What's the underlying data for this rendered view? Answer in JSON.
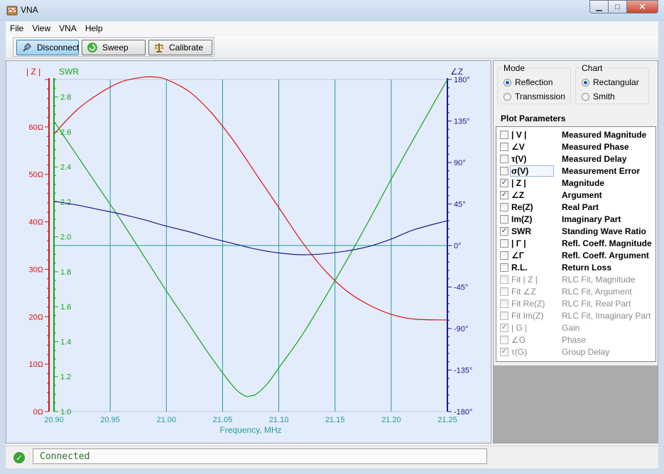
{
  "window": {
    "title": "VNA"
  },
  "menu": [
    "File",
    "View",
    "VNA",
    "Help"
  ],
  "toolbar": {
    "disconnect": "Disconnect",
    "sweep": "Sweep",
    "calibrate": "Calibrate"
  },
  "mode": {
    "title": "Mode",
    "options": [
      "Reflection",
      "Transmission"
    ],
    "selected": "Reflection"
  },
  "chart_type": {
    "title": "Chart",
    "options": [
      "Rectangular",
      "Smith"
    ],
    "selected": "Rectangular"
  },
  "plot_parameters": {
    "title": "Plot Parameters",
    "items": [
      {
        "symbol": "| V |",
        "label": "Measured Magnitude",
        "checked": false,
        "enabled": true
      },
      {
        "symbol": "∠V",
        "label": "Measured Phase",
        "checked": false,
        "enabled": true
      },
      {
        "symbol": "τ(V)",
        "label": "Measured Delay",
        "checked": false,
        "enabled": true
      },
      {
        "symbol": "σ(V)",
        "label": "Measurement Error",
        "checked": false,
        "enabled": true
      },
      {
        "symbol": "| Z |",
        "label": "Magnitude",
        "checked": true,
        "enabled": true
      },
      {
        "symbol": "∠Z",
        "label": "Argument",
        "checked": true,
        "enabled": true
      },
      {
        "symbol": "Re(Z)",
        "label": "Real Part",
        "checked": false,
        "enabled": true
      },
      {
        "symbol": "Im(Z)",
        "label": "Imaginary Part",
        "checked": false,
        "enabled": true
      },
      {
        "symbol": "SWR",
        "label": "Standing Wave Ratio",
        "checked": true,
        "enabled": true
      },
      {
        "symbol": "| Γ |",
        "label": "Refl. Coeff. Magnitude",
        "checked": false,
        "enabled": true
      },
      {
        "symbol": "∠Γ",
        "label": "Refl. Coeff. Argument",
        "checked": false,
        "enabled": true
      },
      {
        "symbol": "R.L.",
        "label": "Return Loss",
        "checked": false,
        "enabled": true
      },
      {
        "symbol": "Fit | Z |",
        "label": "RLC Fit, Magnitude",
        "checked": false,
        "enabled": false
      },
      {
        "symbol": "Fit ∠Z",
        "label": "RLC Fit, Argument",
        "checked": false,
        "enabled": false
      },
      {
        "symbol": "Fit Re(Z)",
        "label": "RLC Fit, Real Part",
        "checked": false,
        "enabled": false
      },
      {
        "symbol": "Fit Im(Z)",
        "label": "RLC Fit, Imaginary Part",
        "checked": false,
        "enabled": false
      },
      {
        "symbol": "| G |",
        "label": "Gain",
        "checked": true,
        "enabled": false
      },
      {
        "symbol": "∠G",
        "label": "Phase",
        "checked": false,
        "enabled": false
      },
      {
        "symbol": "τ(G)",
        "label": "Group Delay",
        "checked": true,
        "enabled": false
      }
    ]
  },
  "status": {
    "text": "Connected"
  },
  "colors": {
    "z_mag": "#e01010",
    "swr": "#15a515",
    "z_arg": "#1a1a8c",
    "grid": "#1f9e9e",
    "plot_bg": "#e3ecfb"
  },
  "chart_data": {
    "type": "line",
    "xlabel": "Frequency, MHz",
    "x_ticks": [
      "20.90",
      "20.95",
      "21.00",
      "21.05",
      "21.10",
      "21.15",
      "21.20",
      "21.25"
    ],
    "xlim": [
      20.9,
      21.25
    ],
    "axes": [
      {
        "id": "z",
        "label": "| Z |",
        "side": "left-outer",
        "range": [
          0,
          70
        ],
        "ticks": [
          "0Ω",
          "10Ω",
          "20Ω",
          "30Ω",
          "40Ω",
          "50Ω",
          "60Ω"
        ],
        "tick_values": [
          0,
          10,
          20,
          30,
          40,
          50,
          60
        ]
      },
      {
        "id": "swr",
        "label": "SWR",
        "side": "left-inner",
        "range": [
          1.0,
          2.9
        ],
        "ticks": [
          "1.0",
          "1.2",
          "1.4",
          "1.6",
          "1.8",
          "2.0",
          "2.2",
          "2.4",
          "2.6",
          "2.8"
        ],
        "tick_values": [
          1.0,
          1.2,
          1.4,
          1.6,
          1.8,
          2.0,
          2.2,
          2.4,
          2.6,
          2.8
        ]
      },
      {
        "id": "arg",
        "label": "∠Z",
        "side": "right",
        "range": [
          -180,
          180
        ],
        "ticks": [
          "-180°",
          "-135°",
          "-90°",
          "-45°",
          "0°",
          "45°",
          "90°",
          "135°",
          "180°"
        ],
        "tick_values": [
          -180,
          -135,
          -90,
          -45,
          0,
          45,
          90,
          135,
          180
        ]
      }
    ],
    "series": [
      {
        "name": "| Z |",
        "axis": "z",
        "x": [
          20.9,
          20.92,
          20.94,
          20.96,
          20.98,
          20.99,
          21.0,
          21.02,
          21.04,
          21.06,
          21.08,
          21.1,
          21.12,
          21.14,
          21.16,
          21.18,
          21.2,
          21.22,
          21.25
        ],
        "y": [
          58.5,
          63.5,
          67.0,
          69.5,
          70.5,
          70.5,
          70.0,
          67.5,
          63.0,
          57.0,
          50.0,
          43.0,
          36.0,
          30.0,
          25.5,
          22.5,
          20.5,
          19.5,
          19.3
        ]
      },
      {
        "name": "SWR",
        "axis": "swr",
        "x": [
          20.9,
          20.92,
          20.94,
          20.96,
          20.98,
          21.0,
          21.02,
          21.04,
          21.06,
          21.07,
          21.075,
          21.08,
          21.09,
          21.1,
          21.12,
          21.14,
          21.16,
          21.18,
          21.2,
          21.22,
          21.25
        ],
        "y": [
          2.66,
          2.47,
          2.28,
          2.09,
          1.89,
          1.69,
          1.5,
          1.31,
          1.14,
          1.09,
          1.09,
          1.1,
          1.16,
          1.25,
          1.43,
          1.64,
          1.86,
          2.09,
          2.33,
          2.56,
          2.9
        ]
      },
      {
        "name": "∠Z",
        "axis": "arg",
        "x": [
          20.9,
          20.92,
          20.94,
          20.96,
          20.98,
          21.0,
          21.02,
          21.04,
          21.06,
          21.08,
          21.1,
          21.12,
          21.14,
          21.16,
          21.18,
          21.2,
          21.22,
          21.25
        ],
        "y": [
          48,
          44,
          39,
          34,
          28,
          21,
          15,
          8,
          2,
          -4,
          -8,
          -10,
          -9,
          -6,
          -1,
          7,
          17,
          27
        ]
      }
    ],
    "grid": true
  }
}
